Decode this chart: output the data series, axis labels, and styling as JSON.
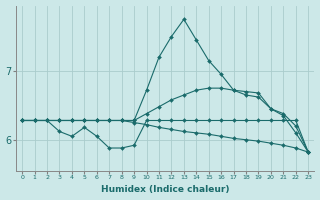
{
  "xlabel": "Humidex (Indice chaleur)",
  "bg_color": "#cce8e8",
  "line_color": "#1a6b6b",
  "grid_color": "#aacccc",
  "x_ticks": [
    0,
    1,
    2,
    3,
    4,
    5,
    6,
    7,
    8,
    9,
    10,
    11,
    12,
    13,
    14,
    15,
    16,
    17,
    18,
    19,
    20,
    21,
    22,
    23
  ],
  "y_ticks": [
    6,
    7
  ],
  "ylim": [
    5.55,
    7.95
  ],
  "xlim": [
    -0.5,
    23.5
  ],
  "series": [
    {
      "x": [
        0,
        1,
        2,
        3,
        4,
        5,
        6,
        7,
        8,
        9,
        10,
        11,
        12,
        13,
        14,
        15,
        16,
        17,
        18,
        19,
        20,
        21,
        22,
        23
      ],
      "y": [
        6.28,
        6.28,
        6.28,
        6.28,
        6.28,
        6.28,
        6.28,
        6.28,
        6.28,
        6.25,
        6.22,
        6.18,
        6.15,
        6.12,
        6.1,
        6.08,
        6.05,
        6.02,
        6.0,
        5.98,
        5.95,
        5.92,
        5.88,
        5.82
      ]
    },
    {
      "x": [
        0,
        1,
        2,
        3,
        4,
        5,
        6,
        7,
        8,
        9,
        10,
        11,
        12,
        13,
        14,
        15,
        16,
        17,
        18,
        19,
        20,
        21,
        22,
        23
      ],
      "y": [
        6.28,
        6.28,
        6.28,
        6.28,
        6.28,
        6.28,
        6.28,
        6.28,
        6.28,
        6.28,
        6.38,
        6.48,
        6.58,
        6.65,
        6.72,
        6.75,
        6.75,
        6.72,
        6.7,
        6.68,
        6.45,
        6.38,
        6.2,
        5.82
      ]
    },
    {
      "x": [
        0,
        1,
        2,
        3,
        4,
        5,
        6,
        7,
        8,
        9,
        10,
        11,
        12,
        13,
        14,
        15,
        16,
        17,
        18,
        19,
        20,
        21,
        22,
        23
      ],
      "y": [
        6.28,
        6.28,
        6.28,
        6.12,
        6.05,
        6.18,
        6.05,
        5.88,
        5.88,
        5.92,
        6.28,
        6.28,
        6.28,
        6.28,
        6.28,
        6.28,
        6.28,
        6.28,
        6.28,
        6.28,
        6.28,
        6.28,
        6.28,
        5.82
      ]
    },
    {
      "x": [
        0,
        1,
        2,
        3,
        4,
        5,
        6,
        7,
        8,
        9,
        10,
        11,
        12,
        13,
        14,
        15,
        16,
        17,
        18,
        19,
        20,
        21,
        22,
        23
      ],
      "y": [
        6.28,
        6.28,
        6.28,
        6.28,
        6.28,
        6.28,
        6.28,
        6.28,
        6.28,
        6.28,
        6.72,
        7.2,
        7.5,
        7.75,
        7.45,
        7.15,
        6.95,
        6.72,
        6.65,
        6.62,
        6.45,
        6.35,
        6.1,
        5.82
      ]
    }
  ]
}
